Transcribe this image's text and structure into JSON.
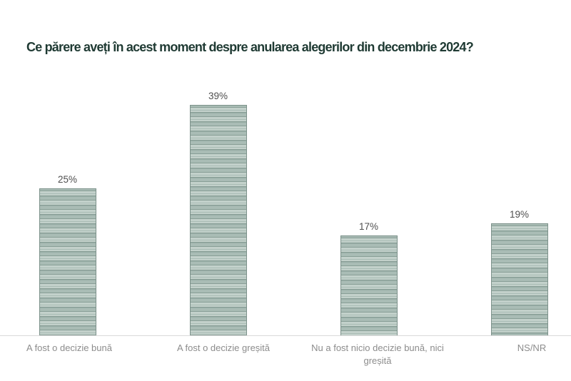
{
  "title": "Ce părere aveți în acest moment despre anularea alegerilor din decembrie 2024?",
  "colors": {
    "background": "#ffffff",
    "title": "#1f3a33",
    "bar_light": "#c3d1cb",
    "bar_mid": "#a9bcb5",
    "bar_dark": "#889e96",
    "bar_border": "#7d928b",
    "value_label": "#4f4f4f",
    "category_label": "#8c8c8c",
    "axis_line": "#d9d9d9"
  },
  "chart_data": {
    "type": "bar",
    "title": "Ce părere aveți în acest moment despre anularea alegerilor din decembrie 2024?",
    "categories": [
      "A fost o decizie bună",
      "A fost o decizie greșită",
      "Nu a fost nicio decizie bună, nici greșită",
      "NS/NR"
    ],
    "values": [
      25,
      39,
      17,
      19
    ],
    "value_labels": [
      "25%",
      "39%",
      "17%",
      "19%"
    ],
    "xlabel": "",
    "ylabel": "",
    "ylim": [
      0,
      45
    ],
    "grid": false,
    "legend": false,
    "bar_texture": "horizontal-stripes"
  }
}
